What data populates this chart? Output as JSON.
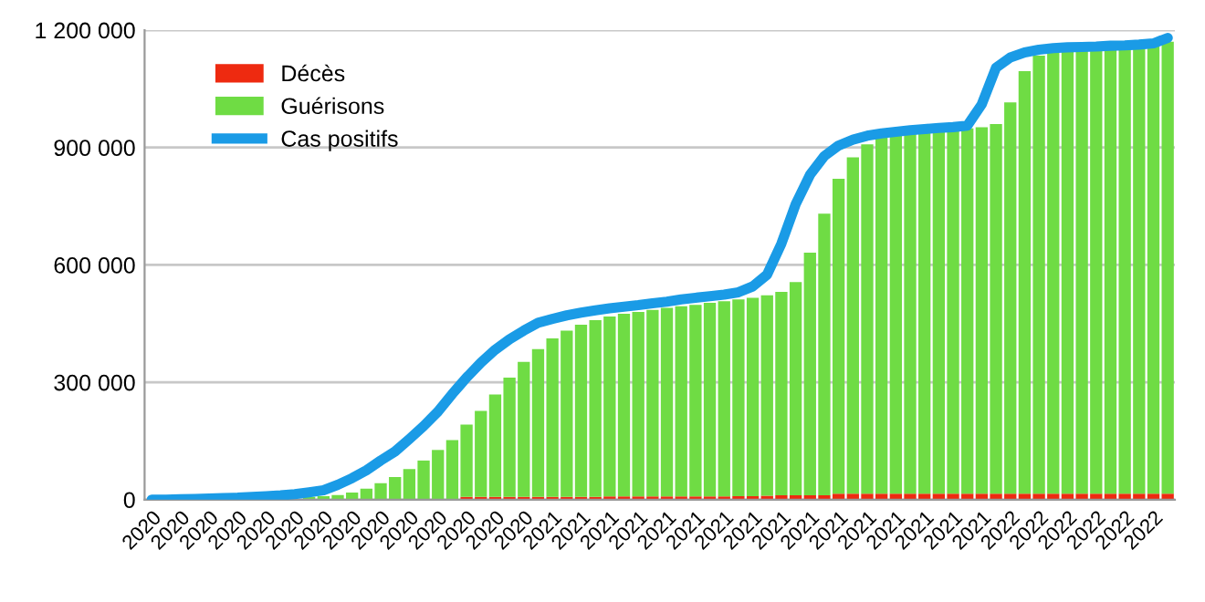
{
  "chart_data": {
    "type": "bar",
    "stacked": true,
    "categories": [
      "2020",
      null,
      "2020",
      null,
      "2020",
      null,
      "2020",
      null,
      "2020",
      null,
      "2020",
      null,
      "2020",
      null,
      "2020",
      null,
      "2020",
      null,
      "2020",
      null,
      "2020",
      null,
      "2020",
      null,
      "2020",
      null,
      "2020",
      null,
      "2021",
      null,
      "2021",
      null,
      "2021",
      null,
      "2021",
      null,
      "2021",
      null,
      "2021",
      null,
      "2021",
      null,
      "2021",
      null,
      "2021",
      null,
      "2021",
      null,
      "2021",
      null,
      "2021",
      null,
      "2021",
      null,
      "2021",
      null,
      "2021",
      null,
      "2021",
      null,
      "2022",
      null,
      "2022",
      null,
      "2022",
      null,
      "2022",
      null,
      "2022",
      null,
      "2022",
      null
    ],
    "series": [
      {
        "name": "Décès",
        "color": "#ee2a10",
        "values": [
          0,
          0,
          0,
          0,
          0,
          0,
          0,
          0,
          0,
          0,
          0,
          0,
          0,
          0,
          0,
          0,
          0,
          0,
          0,
          0,
          2000,
          2000,
          7000,
          7000,
          7000,
          7000,
          7000,
          7000,
          7000,
          7000,
          7000,
          7000,
          8000,
          8000,
          8000,
          8000,
          8000,
          8000,
          8000,
          8000,
          8000,
          9000,
          9000,
          10000,
          11000,
          11000,
          11000,
          11000,
          15000,
          15000,
          15000,
          15000,
          15000,
          15000,
          15000,
          15000,
          15000,
          15000,
          15000,
          15000,
          15000,
          15000,
          15000,
          15000,
          15000,
          15000,
          15000,
          15000,
          15000,
          15000,
          15000,
          15000
        ]
      },
      {
        "name": "Guérisons",
        "color": "#6fdc44",
        "values": [
          0,
          0,
          0,
          0,
          0,
          0,
          0,
          1000,
          2000,
          3000,
          null,
          7000,
          9000,
          12000,
          18000,
          28000,
          42000,
          58000,
          78000,
          100000,
          125000,
          150000,
          185000,
          220000,
          262000,
          305000,
          345000,
          378000,
          405000,
          425000,
          440000,
          452000,
          460000,
          467000,
          472000,
          477000,
          482000,
          486000,
          490000,
          495000,
          499000,
          503000,
          507000,
          512000,
          520000,
          545000,
          620000,
          720000,
          805000,
          860000,
          893000,
          910000,
          918000,
          922000,
          926000,
          929000,
          932000,
          934000,
          937000,
          945000,
          1000000,
          1080000,
          1120000,
          1135000,
          1140000,
          1141000,
          1142000,
          1143000,
          1144000,
          1146000,
          1148000,
          1155000
        ]
      },
      {
        "name": "Cas positifs",
        "type": "line",
        "color": "#1a9be6",
        "values": [
          0,
          0,
          1000,
          2000,
          3000,
          4000,
          5000,
          7000,
          9000,
          11000,
          14000,
          19000,
          24000,
          38000,
          55000,
          75000,
          100000,
          123000,
          155000,
          188000,
          225000,
          270000,
          312000,
          350000,
          383000,
          410000,
          432000,
          452000,
          462000,
          471000,
          478000,
          484000,
          489000,
          493000,
          497000,
          502000,
          506000,
          512000,
          516000,
          520000,
          524000,
          530000,
          545000,
          575000,
          654000,
          755000,
          830000,
          878000,
          905000,
          920000,
          930000,
          936000,
          940000,
          944000,
          947000,
          950000,
          952000,
          956000,
          1010000,
          1104000,
          1130000,
          1143000,
          1150000,
          1154000,
          1156000,
          1157000,
          1158000,
          1160000,
          1161000,
          1163000,
          1166000,
          1180000
        ]
      }
    ],
    "ylim": [
      0,
      1200000
    ],
    "yticks": [
      0,
      {
        "value": 300000,
        "label": "300 000"
      },
      {
        "value": 600000,
        "label": "600 000"
      },
      {
        "value": 900000,
        "label": "900 000"
      },
      {
        "value": 1200000,
        "label": "1 200 000"
      }
    ],
    "grid": "y",
    "legend": "top left",
    "line_style": "solid"
  }
}
